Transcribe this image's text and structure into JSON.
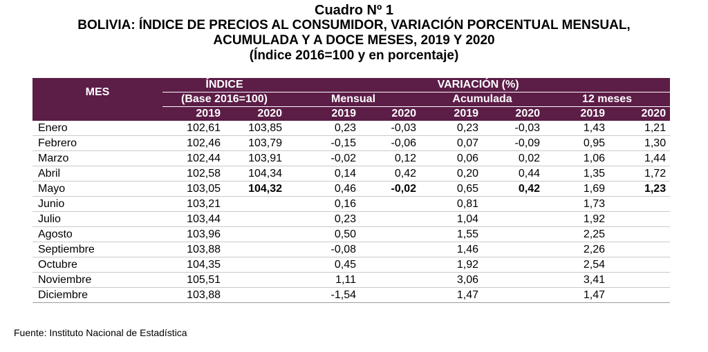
{
  "title": {
    "line1": "Cuadro Nº 1",
    "line2": "BOLIVIA: ÍNDICE DE PRECIOS AL CONSUMIDOR, VARIACIÓN PORCENTUAL MENSUAL,",
    "line3": "ACUMULADA Y A DOCE MESES, 2019 Y 2020",
    "line4": "(Índice 2016=100 y en porcentaje)"
  },
  "header": {
    "mes": "MES",
    "indice": "ÍNDICE",
    "base": "(Base 2016=100)",
    "variacion": "VARIACIÓN (%)",
    "mensual": "Mensual",
    "acumulada": "Acumulada",
    "doce_meses": "12 meses",
    "years": [
      "2019",
      "2020",
      "2019",
      "2020",
      "2019",
      "2020",
      "2019",
      "2020"
    ]
  },
  "rows": [
    {
      "month": "Enero",
      "cells": [
        "102,61",
        "103,85",
        "0,23",
        "-0,03",
        "0,23",
        "-0,03",
        "1,43",
        "1,21"
      ]
    },
    {
      "month": "Febrero",
      "cells": [
        "102,46",
        "103,79",
        "-0,15",
        "-0,06",
        "0,07",
        "-0,09",
        "0,95",
        "1,30"
      ]
    },
    {
      "month": "Marzo",
      "cells": [
        "102,44",
        "103,91",
        "-0,02",
        "0,12",
        "0,06",
        "0,02",
        "1,06",
        "1,44"
      ]
    },
    {
      "month": "Abril",
      "cells": [
        "102,58",
        "104,34",
        "0,14",
        "0,42",
        "0,20",
        "0,44",
        "1,35",
        "1,72"
      ]
    },
    {
      "month": "Mayo",
      "cells": [
        "103,05",
        "104,32",
        "0,46",
        "-0,02",
        "0,65",
        "0,42",
        "1,69",
        "1,23"
      ]
    },
    {
      "month": "Junio",
      "cells": [
        "103,21",
        "",
        "0,16",
        "",
        "0,81",
        "",
        "1,73",
        ""
      ]
    },
    {
      "month": "Julio",
      "cells": [
        "103,44",
        "",
        "0,23",
        "",
        "1,04",
        "",
        "1,92",
        ""
      ]
    },
    {
      "month": "Agosto",
      "cells": [
        "103,96",
        "",
        "0,50",
        "",
        "1,55",
        "",
        "2,25",
        ""
      ]
    },
    {
      "month": "Septiembre",
      "cells": [
        "103,88",
        "",
        "-0,08",
        "",
        "1,46",
        "",
        "2,26",
        ""
      ]
    },
    {
      "month": "Octubre",
      "cells": [
        "104,35",
        "",
        "0,45",
        "",
        "1,92",
        "",
        "2,54",
        ""
      ]
    },
    {
      "month": "Noviembre",
      "cells": [
        "105,51",
        "",
        "1,11",
        "",
        "3,06",
        "",
        "3,41",
        ""
      ]
    },
    {
      "month": "Diciembre",
      "cells": [
        "103,88",
        "",
        "-1,54",
        "",
        "1,47",
        "",
        "1,47",
        ""
      ]
    }
  ],
  "source": "Fuente: Instituto Nacional de Estadística",
  "colors": {
    "header_bg": "#5c1d47",
    "header_text": "#ffffff"
  }
}
